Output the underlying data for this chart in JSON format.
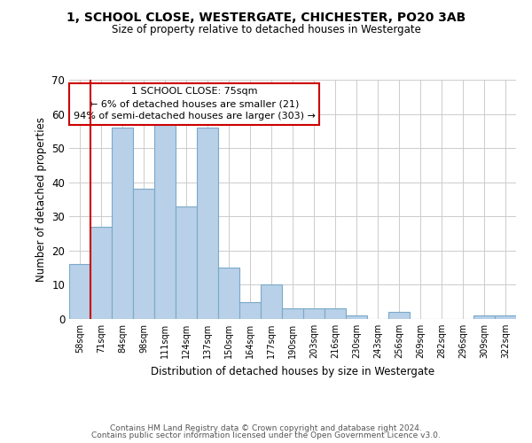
{
  "title": "1, SCHOOL CLOSE, WESTERGATE, CHICHESTER, PO20 3AB",
  "subtitle": "Size of property relative to detached houses in Westergate",
  "xlabel": "Distribution of detached houses by size in Westergate",
  "ylabel": "Number of detached properties",
  "bar_labels": [
    "58sqm",
    "71sqm",
    "84sqm",
    "98sqm",
    "111sqm",
    "124sqm",
    "137sqm",
    "150sqm",
    "164sqm",
    "177sqm",
    "190sqm",
    "203sqm",
    "216sqm",
    "230sqm",
    "243sqm",
    "256sqm",
    "269sqm",
    "282sqm",
    "296sqm",
    "309sqm",
    "322sqm"
  ],
  "bar_values": [
    16,
    27,
    56,
    38,
    57,
    33,
    56,
    15,
    5,
    10,
    3,
    3,
    3,
    1,
    0,
    2,
    0,
    0,
    0,
    1,
    1
  ],
  "bar_color": "#b8d0e8",
  "bar_edge_color": "#7aaac8",
  "reference_line_color": "#cc0000",
  "ylim": [
    0,
    70
  ],
  "yticks": [
    0,
    10,
    20,
    30,
    40,
    50,
    60,
    70
  ],
  "annotation_title": "1 SCHOOL CLOSE: 75sqm",
  "annotation_line1": "← 6% of detached houses are smaller (21)",
  "annotation_line2": "94% of semi-detached houses are larger (303) →",
  "annotation_box_color": "#ffffff",
  "annotation_box_edge": "#cc0000",
  "footer1": "Contains HM Land Registry data © Crown copyright and database right 2024.",
  "footer2": "Contains public sector information licensed under the Open Government Licence v3.0.",
  "background_color": "#ffffff",
  "grid_color": "#cccccc"
}
